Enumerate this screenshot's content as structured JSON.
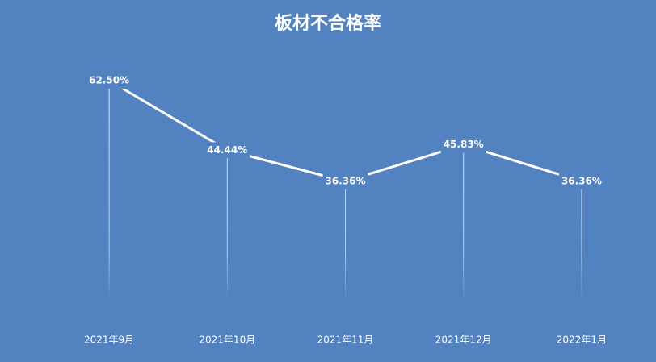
{
  "chart_data": {
    "type": "line",
    "title": "板材不合格率",
    "categories": [
      "2021年9月",
      "2021年10月",
      "2021年11月",
      "2021年12月",
      "2022年1月"
    ],
    "values": [
      62.5,
      44.44,
      36.36,
      45.83,
      36.36
    ],
    "value_labels": [
      "62.50%",
      "44.44%",
      "36.36%",
      "45.83%",
      "36.36%"
    ],
    "color": "#ffffff",
    "background": "#5282bf",
    "ylim": [
      0,
      70
    ]
  }
}
